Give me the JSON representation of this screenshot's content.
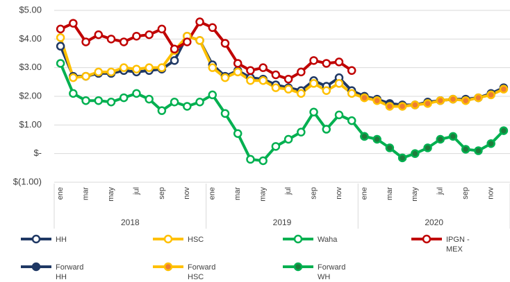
{
  "chart_data": {
    "type": "line",
    "categories": [
      "ene",
      null,
      "mar",
      null,
      "may",
      null,
      "jul",
      null,
      "sep",
      null,
      "nov",
      null,
      "ene",
      null,
      "mar",
      null,
      "may",
      null,
      "jul",
      null,
      "sep",
      null,
      "nov",
      null,
      "ene",
      null,
      "mar",
      null,
      "may",
      null,
      "jul",
      null,
      "sep",
      null,
      "nov",
      null
    ],
    "x_groups": [
      "2018",
      "2019",
      "2020"
    ],
    "ylim": [
      -1,
      5
    ],
    "yticks": [
      {
        "value": -1,
        "label": "$(1.00)"
      },
      {
        "value": 0,
        "label": "$-"
      },
      {
        "value": 1,
        "label": "$1.00"
      },
      {
        "value": 2,
        "label": "$2.00"
      },
      {
        "value": 3,
        "label": "$3.00"
      },
      {
        "value": 4,
        "label": "$4.00"
      },
      {
        "value": 5,
        "label": "$5.00"
      }
    ],
    "grid": true,
    "legend": "bottom",
    "series": [
      {
        "name": "HH",
        "color": "#1f3864",
        "marker_fill": "#ffffff",
        "values": [
          3.75,
          2.7,
          2.7,
          2.8,
          2.8,
          2.9,
          2.85,
          2.9,
          2.95,
          3.25,
          4.1,
          3.95,
          3.1,
          2.7,
          2.9,
          2.65,
          2.6,
          2.4,
          2.3,
          2.2,
          2.55,
          2.35,
          2.65,
          2.2,
          2.0,
          null,
          null,
          null,
          null,
          null,
          null,
          null,
          null,
          null,
          null,
          null
        ]
      },
      {
        "name": "HSC",
        "color": "#ffc000",
        "marker_fill": "#ffffff",
        "values": [
          4.05,
          2.65,
          2.7,
          2.85,
          2.85,
          3.0,
          2.95,
          3.0,
          3.0,
          3.6,
          4.1,
          3.95,
          3.0,
          2.65,
          2.85,
          2.55,
          2.55,
          2.3,
          2.25,
          2.1,
          2.45,
          2.2,
          2.45,
          2.1,
          1.95,
          null,
          null,
          null,
          null,
          null,
          null,
          null,
          null,
          null,
          null,
          null
        ]
      },
      {
        "name": "Waha",
        "color": "#00b050",
        "marker_fill": "#ffffff",
        "values": [
          3.15,
          2.1,
          1.85,
          1.85,
          1.8,
          1.95,
          2.1,
          1.9,
          1.5,
          1.8,
          1.65,
          1.8,
          2.05,
          1.4,
          0.7,
          -0.2,
          -0.25,
          0.25,
          0.5,
          0.75,
          1.45,
          0.85,
          1.35,
          1.15,
          0.6,
          null,
          null,
          null,
          null,
          null,
          null,
          null,
          null,
          null,
          null,
          null
        ]
      },
      {
        "name": "IPGN - MEX",
        "color": "#c00000",
        "marker_fill": "#ffffff",
        "values": [
          4.35,
          4.55,
          3.9,
          4.15,
          4.0,
          3.9,
          4.1,
          4.15,
          4.35,
          3.65,
          3.9,
          4.6,
          4.4,
          3.85,
          3.15,
          2.9,
          3.0,
          2.75,
          2.6,
          2.85,
          3.25,
          3.15,
          3.2,
          2.9,
          null,
          null,
          null,
          null,
          null,
          null,
          null,
          null,
          null,
          null,
          null,
          null
        ]
      },
      {
        "name": "Forward HH",
        "color": "#1f3864",
        "marker_fill": "#1f3864",
        "values": [
          null,
          null,
          null,
          null,
          null,
          null,
          null,
          null,
          null,
          null,
          null,
          null,
          null,
          null,
          null,
          null,
          null,
          null,
          null,
          null,
          null,
          null,
          null,
          null,
          2.0,
          1.9,
          1.75,
          1.7,
          1.7,
          1.8,
          1.85,
          1.9,
          1.9,
          1.95,
          2.1,
          2.3
        ]
      },
      {
        "name": "Forward HSC",
        "color": "#ffc000",
        "marker_fill": "#ed7d31",
        "values": [
          null,
          null,
          null,
          null,
          null,
          null,
          null,
          null,
          null,
          null,
          null,
          null,
          null,
          null,
          null,
          null,
          null,
          null,
          null,
          null,
          null,
          null,
          null,
          null,
          1.95,
          1.85,
          1.65,
          1.65,
          1.7,
          1.75,
          1.85,
          1.9,
          1.85,
          1.95,
          2.05,
          2.25
        ]
      },
      {
        "name": "Forward WH",
        "color": "#00b050",
        "marker_fill": "#1e7b3c",
        "values": [
          null,
          null,
          null,
          null,
          null,
          null,
          null,
          null,
          null,
          null,
          null,
          null,
          null,
          null,
          null,
          null,
          null,
          null,
          null,
          null,
          null,
          null,
          null,
          null,
          0.6,
          0.5,
          0.2,
          -0.15,
          0.0,
          0.2,
          0.5,
          0.6,
          0.15,
          0.1,
          0.35,
          0.8
        ]
      }
    ]
  }
}
